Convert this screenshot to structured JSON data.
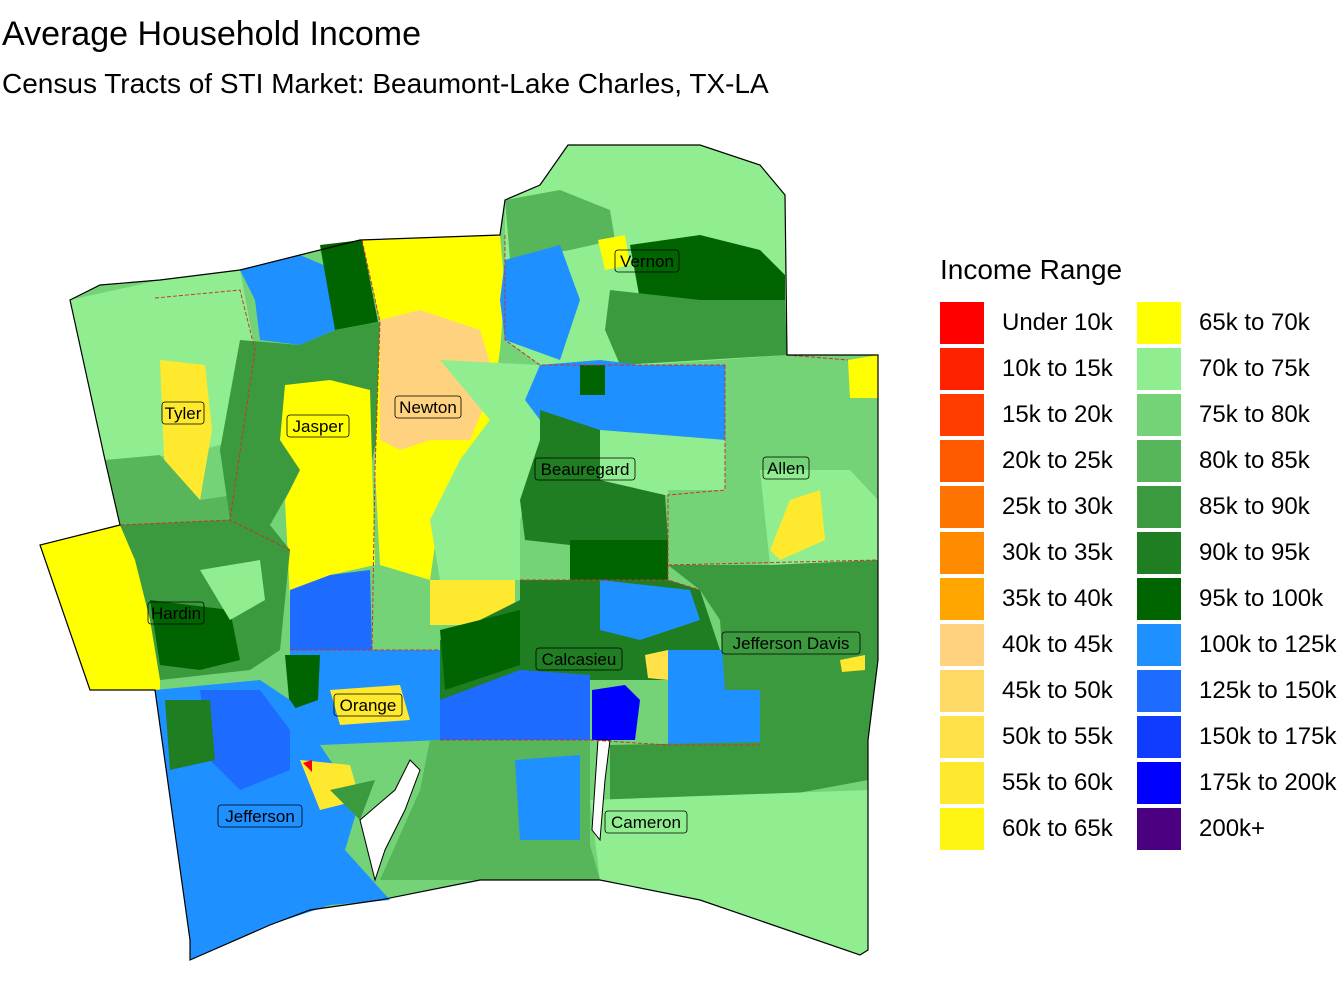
{
  "title": "Average Household Income",
  "subtitle": "Census Tracts of STI Market: Beaumont-Lake Charles, TX-LA",
  "legend": {
    "title": "Income Range",
    "column1": [
      {
        "label": "Under 10k",
        "color": "#ff0000"
      },
      {
        "label": "10k to 15k",
        "color": "#ff2200"
      },
      {
        "label": "15k to 20k",
        "color": "#ff3d00"
      },
      {
        "label": "20k to 25k",
        "color": "#ff5a00"
      },
      {
        "label": "25k to 30k",
        "color": "#ff7400"
      },
      {
        "label": "30k to 35k",
        "color": "#ff8c00"
      },
      {
        "label": "35k to 40k",
        "color": "#ffa600"
      },
      {
        "label": "40k to 45k",
        "color": "#ffd27f"
      },
      {
        "label": "45k to 50k",
        "color": "#ffd966"
      },
      {
        "label": "50k to 55k",
        "color": "#ffe24a"
      },
      {
        "label": "55k to 60k",
        "color": "#ffe92e"
      },
      {
        "label": "60k to 65k",
        "color": "#fff514"
      }
    ],
    "column2": [
      {
        "label": "65k to 70k",
        "color": "#ffff00"
      },
      {
        "label": "70k to 75k",
        "color": "#90ee90"
      },
      {
        "label": "75k to 80k",
        "color": "#74d277"
      },
      {
        "label": "80k to 85k",
        "color": "#58b65a"
      },
      {
        "label": "85k to 90k",
        "color": "#3c9a3e"
      },
      {
        "label": "90k to 95k",
        "color": "#207e22"
      },
      {
        "label": "95k to 100k",
        "color": "#006400"
      },
      {
        "label": "100k to 125k",
        "color": "#1e90ff"
      },
      {
        "label": "125k to 150k",
        "color": "#1e6cff"
      },
      {
        "label": "150k to 175k",
        "color": "#0f3cff"
      },
      {
        "label": "175k to 200k",
        "color": "#0000ff"
      },
      {
        "label": "200k+",
        "color": "#4b0082"
      }
    ]
  },
  "counties": [
    {
      "name": "Tyler"
    },
    {
      "name": "Jasper"
    },
    {
      "name": "Newton"
    },
    {
      "name": "Vernon"
    },
    {
      "name": "Beauregard"
    },
    {
      "name": "Allen"
    },
    {
      "name": "Hardin"
    },
    {
      "name": "Calcasieu"
    },
    {
      "name": "Jefferson Davis"
    },
    {
      "name": "Orange"
    },
    {
      "name": "Jefferson"
    },
    {
      "name": "Cameron"
    }
  ]
}
